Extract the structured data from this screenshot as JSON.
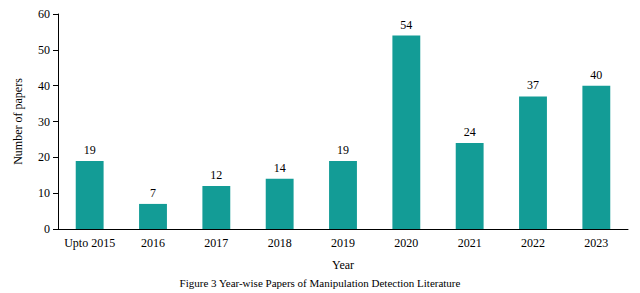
{
  "chart_data": {
    "type": "bar",
    "title": "Figure 3 Year-wise Papers of Manipulation Detection Literature",
    "x_label": "Year",
    "y_label": "Number of papers",
    "categories": [
      "Upto 2015",
      "2016",
      "2017",
      "2018",
      "2019",
      "2020",
      "2021",
      "2022",
      "2023"
    ],
    "values": [
      19,
      7,
      12,
      14,
      19,
      54,
      24,
      37,
      40
    ],
    "color": "#139c96",
    "ylim": [
      0,
      60
    ],
    "yticks": [
      0,
      10,
      20,
      30,
      40,
      50,
      60
    ],
    "grid": false,
    "data_labels": true
  }
}
